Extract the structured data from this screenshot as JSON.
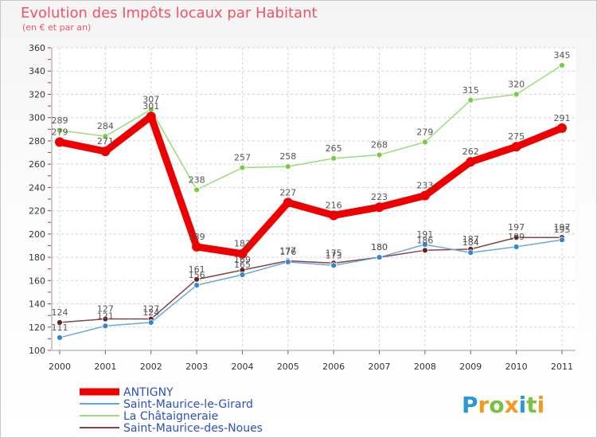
{
  "chart_data": {
    "type": "line",
    "title": "Evolution des Impôts locaux par Habitant",
    "subtitle": "(en € et par an)",
    "xlabel": "",
    "ylabel": "",
    "x": [
      "2000",
      "2001",
      "2002",
      "2003",
      "2004",
      "2005",
      "2006",
      "2007",
      "2008",
      "2009",
      "2010",
      "2011"
    ],
    "ylim": [
      100,
      360
    ],
    "yticks": [
      100,
      120,
      140,
      160,
      180,
      200,
      220,
      240,
      260,
      280,
      300,
      320,
      340,
      360
    ],
    "grid": true,
    "legend_position": "bottom-left",
    "series": [
      {
        "name": "ANTIGNY",
        "color": "#ee0000",
        "values": [
          279,
          271,
          301,
          189,
          183,
          227,
          216,
          223,
          233,
          262,
          275,
          291
        ]
      },
      {
        "name": "Saint-Maurice-le-Girard",
        "color": "#66aadd",
        "values": [
          111,
          121,
          124,
          156,
          165,
          176,
          173,
          180,
          191,
          184,
          189,
          195
        ]
      },
      {
        "name": "La Châtaigneraie",
        "color": "#99dd77",
        "values": [
          289,
          284,
          307,
          238,
          257,
          258,
          265,
          268,
          279,
          315,
          320,
          345
        ]
      },
      {
        "name": "Saint-Maurice-des-Noues",
        "color": "#884444",
        "values": [
          124,
          127,
          127,
          161,
          169,
          177,
          175,
          180,
          186,
          187,
          197,
          197
        ]
      }
    ]
  },
  "logo": {
    "letters": [
      "P",
      "r",
      "o",
      "x",
      "i",
      "t",
      "i"
    ]
  },
  "colors": {
    "title": "#ee5566",
    "legend_text": "#2a52be",
    "grid": "#d4d4d4",
    "logo": [
      "#2a9ad6",
      "#f39a1e",
      "#7cc242",
      "#f39a1e",
      "#2a9ad6",
      "#7cc242",
      "#f39a1e"
    ]
  }
}
